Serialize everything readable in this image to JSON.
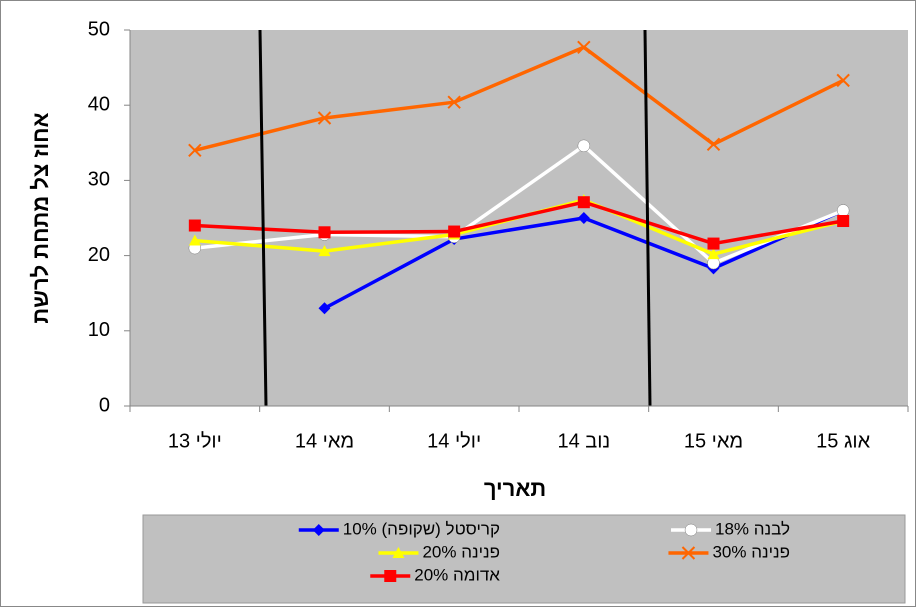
{
  "chart_data": {
    "type": "line",
    "x_label": "תאריך",
    "y_label": "אחוז צל מתחת לרשת",
    "categories": [
      "יולי 13",
      "מאי 14",
      "יולי 14",
      "נוב 14",
      "מאי 15",
      "אוג 15"
    ],
    "ylim": [
      0,
      50
    ],
    "yticks": [
      0,
      10,
      20,
      30,
      40,
      50
    ],
    "series": [
      {
        "name": "קריסטל (שקופה) 10%",
        "color": "#0000ff",
        "marker": "diamond",
        "values": [
          null,
          13,
          22.2,
          25,
          18.3,
          26
        ]
      },
      {
        "name": "לבנה 18%",
        "color": "#ffffff",
        "marker": "circle",
        "values": [
          21,
          22.8,
          22.5,
          34.6,
          19,
          26
        ]
      },
      {
        "name": "פנינה 20%",
        "color": "#ffff00",
        "marker": "triangle",
        "values": [
          22,
          20.6,
          22.8,
          27.4,
          20.2,
          24.6
        ]
      },
      {
        "name": "פנינה 30%",
        "color": "#ff6600",
        "marker": "x",
        "values": [
          34,
          38.3,
          40.4,
          47.7,
          34.8,
          43.3
        ]
      },
      {
        "name": "אדומה 20%",
        "color": "#ff0000",
        "marker": "square",
        "values": [
          24,
          23.1,
          23.2,
          27.1,
          21.6,
          24.6
        ]
      }
    ]
  }
}
